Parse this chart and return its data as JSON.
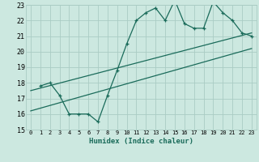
{
  "xlabel": "Humidex (Indice chaleur)",
  "bg_color": "#cce8e0",
  "grid_color": "#aaccc4",
  "line_color": "#1a6b5a",
  "xlim": [
    -0.5,
    23.5
  ],
  "ylim": [
    15,
    23
  ],
  "xticks": [
    0,
    1,
    2,
    3,
    4,
    5,
    6,
    7,
    8,
    9,
    10,
    11,
    12,
    13,
    14,
    15,
    16,
    17,
    18,
    19,
    20,
    21,
    22,
    23
  ],
  "yticks": [
    15,
    16,
    17,
    18,
    19,
    20,
    21,
    22,
    23
  ],
  "scatter_x": [
    1,
    2,
    3,
    4,
    5,
    6,
    7,
    8,
    9,
    10,
    11,
    12,
    13,
    14,
    15,
    16,
    17,
    18,
    19,
    20,
    21,
    22,
    23
  ],
  "scatter_y": [
    17.8,
    18.0,
    17.2,
    16.0,
    16.0,
    16.0,
    15.5,
    17.2,
    18.8,
    20.5,
    22.0,
    22.5,
    22.8,
    22.0,
    23.3,
    21.8,
    21.5,
    21.5,
    23.2,
    22.5,
    22.0,
    21.2,
    21.0
  ],
  "trend1_x": [
    0,
    23
  ],
  "trend1_y": [
    17.5,
    21.2
  ],
  "trend2_x": [
    0,
    23
  ],
  "trend2_y": [
    16.2,
    20.2
  ]
}
